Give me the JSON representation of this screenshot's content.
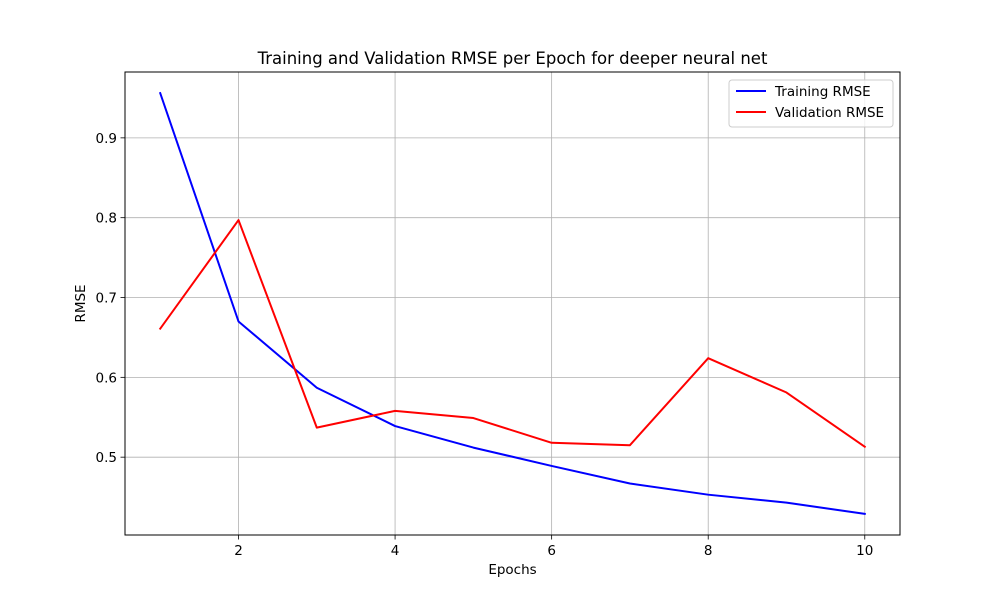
{
  "chart_data": {
    "type": "line",
    "title": "Training and Validation RMSE per Epoch for deeper neural net",
    "xlabel": "Epochs",
    "ylabel": "RMSE",
    "xlim": [
      0.55,
      10.45
    ],
    "ylim": [
      0.4025,
      0.9825
    ],
    "x_ticks": [
      2,
      4,
      6,
      8,
      10
    ],
    "y_ticks": [
      0.5,
      0.6,
      0.7,
      0.8,
      0.9
    ],
    "x_tick_labels": [
      "2",
      "4",
      "6",
      "8",
      "10"
    ],
    "y_tick_labels": [
      "0.5",
      "0.6",
      "0.7",
      "0.8",
      "0.9"
    ],
    "grid": true,
    "legend_position": "top-right",
    "x": [
      1,
      2,
      3,
      4,
      5,
      6,
      7,
      8,
      9,
      10
    ],
    "series": [
      {
        "name": "Training RMSE",
        "color": "#0000ff",
        "values": [
          0.956,
          0.67,
          0.587,
          0.539,
          0.512,
          0.489,
          0.467,
          0.453,
          0.443,
          0.429
        ]
      },
      {
        "name": "Validation RMSE",
        "color": "#ff0000",
        "values": [
          0.661,
          0.797,
          0.537,
          0.558,
          0.549,
          0.518,
          0.515,
          0.624,
          0.581,
          0.513
        ]
      }
    ]
  }
}
